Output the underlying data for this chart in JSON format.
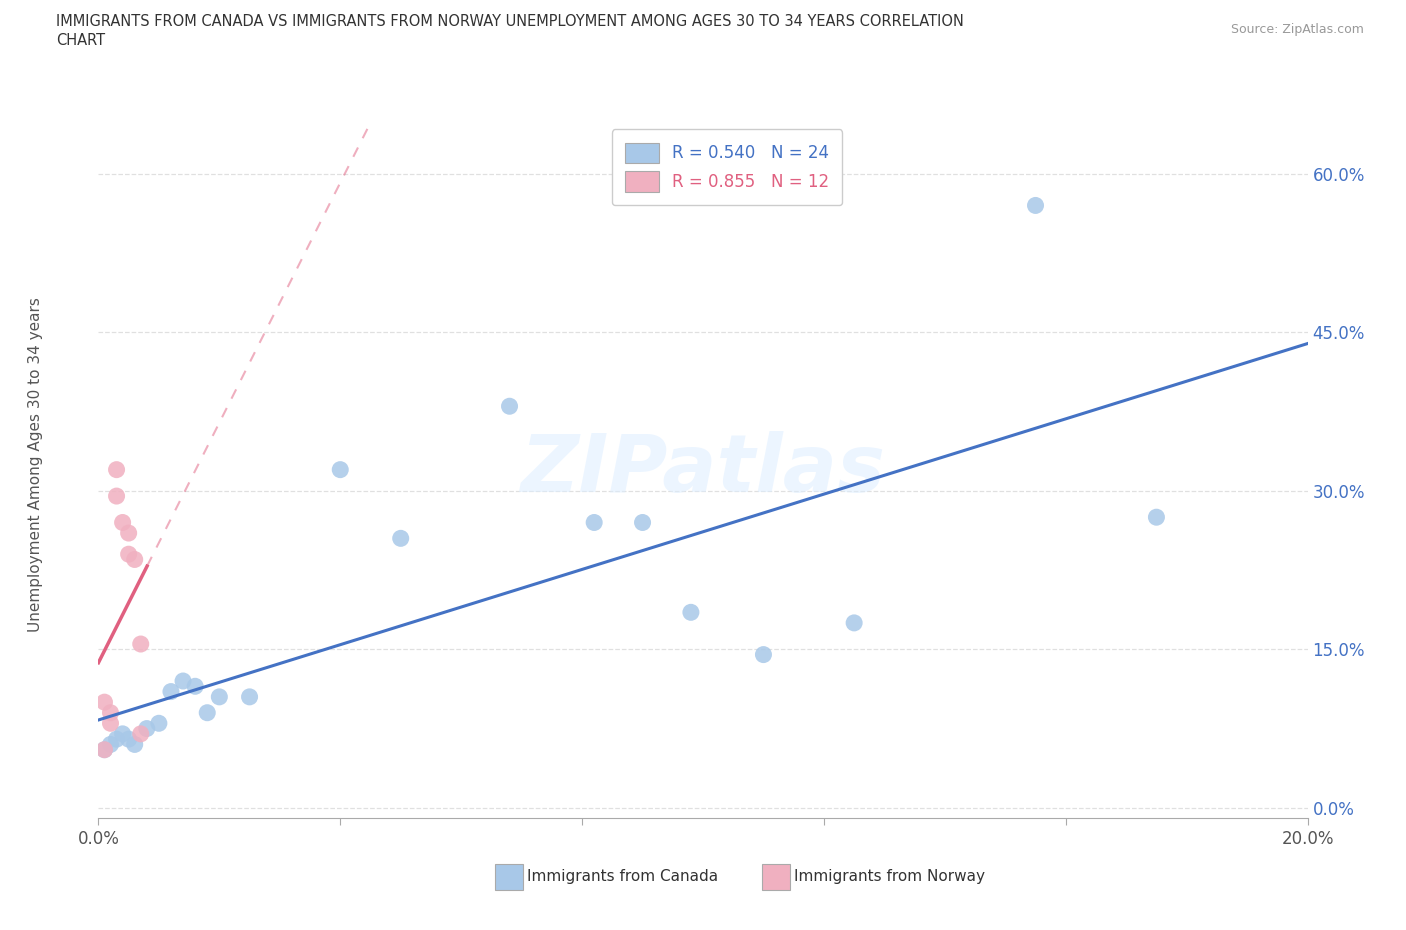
{
  "title_line1": "IMMIGRANTS FROM CANADA VS IMMIGRANTS FROM NORWAY UNEMPLOYMENT AMONG AGES 30 TO 34 YEARS CORRELATION",
  "title_line2": "CHART",
  "source": "Source: ZipAtlas.com",
  "ylabel_label": "Unemployment Among Ages 30 to 34 years",
  "xlim": [
    0.0,
    0.2
  ],
  "ylim": [
    -0.01,
    0.65
  ],
  "ytick_vals": [
    0.0,
    0.15,
    0.3,
    0.45,
    0.6
  ],
  "ytick_labels": [
    "0.0%",
    "15.0%",
    "30.0%",
    "45.0%",
    "60.0%"
  ],
  "xtick_vals": [
    0.0,
    0.04,
    0.08,
    0.12,
    0.16,
    0.2
  ],
  "xtick_labels": [
    "0.0%",
    "",
    "",
    "",
    "",
    "20.0%"
  ],
  "canada_x": [
    0.001,
    0.002,
    0.003,
    0.004,
    0.005,
    0.006,
    0.008,
    0.01,
    0.012,
    0.014,
    0.016,
    0.018,
    0.02,
    0.025,
    0.04,
    0.05,
    0.068,
    0.082,
    0.09,
    0.098,
    0.11,
    0.125,
    0.155,
    0.175
  ],
  "canada_y": [
    0.055,
    0.06,
    0.065,
    0.07,
    0.065,
    0.06,
    0.075,
    0.08,
    0.11,
    0.12,
    0.115,
    0.09,
    0.105,
    0.105,
    0.32,
    0.255,
    0.38,
    0.27,
    0.27,
    0.185,
    0.145,
    0.175,
    0.57,
    0.275
  ],
  "norway_x": [
    0.001,
    0.001,
    0.002,
    0.002,
    0.003,
    0.003,
    0.004,
    0.005,
    0.005,
    0.006,
    0.007,
    0.007
  ],
  "norway_y": [
    0.055,
    0.1,
    0.08,
    0.09,
    0.295,
    0.32,
    0.27,
    0.24,
    0.26,
    0.235,
    0.155,
    0.07
  ],
  "canada_dot_color": "#a8c8e8",
  "norway_dot_color": "#f0b0c0",
  "canada_line_color": "#4472c4",
  "norway_line_color": "#e06080",
  "canada_R": 0.54,
  "canada_N": 24,
  "norway_R": 0.855,
  "norway_N": 12,
  "watermark": "ZIPatlas",
  "background_color": "#ffffff",
  "grid_color": "#e0e0e0",
  "ytick_color": "#4472c4",
  "title_color": "#333333",
  "source_color": "#999999"
}
